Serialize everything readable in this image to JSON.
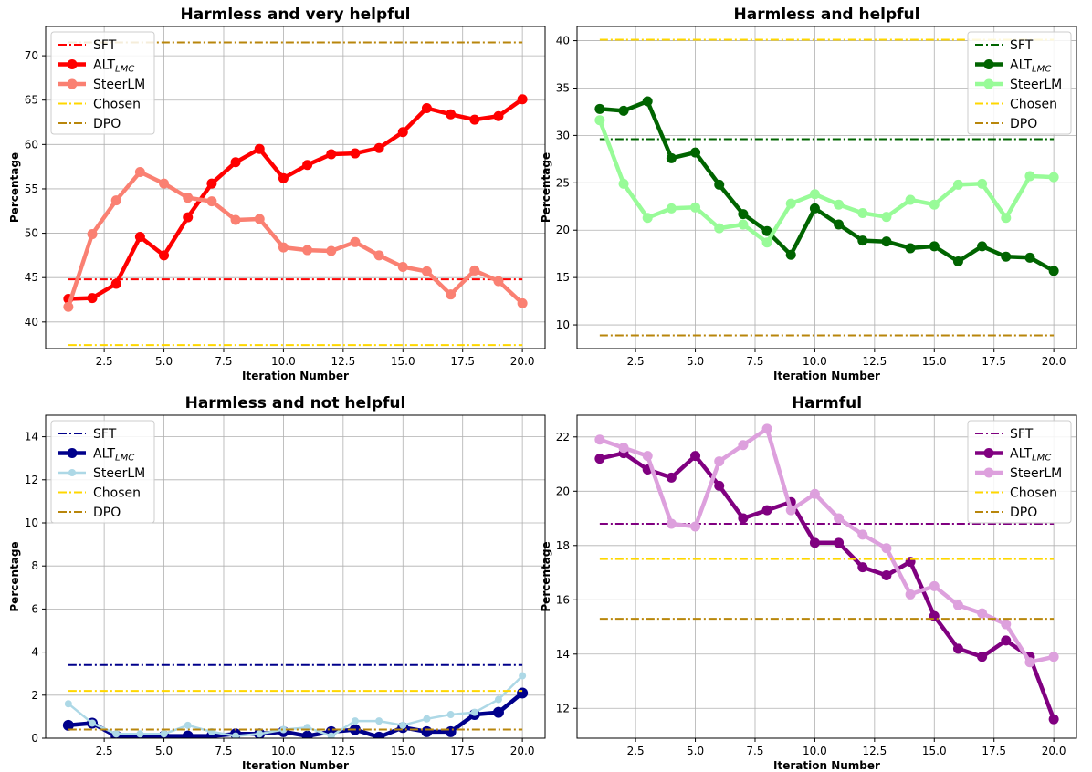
{
  "chart_data": [
    {
      "type": "line",
      "title": "Harmless and very helpful",
      "xlabel": "Iteration Number",
      "ylabel": "Percentage",
      "xlim": [
        0.05,
        20.95
      ],
      "ylim": [
        37.0,
        73.3
      ],
      "xticks": [
        2.5,
        5.0,
        7.5,
        10.0,
        12.5,
        15.0,
        17.5,
        20.0
      ],
      "xtick_labels": [
        "2.5",
        "5.0",
        "7.5",
        "10.0",
        "12.5",
        "15.0",
        "17.5",
        "20.0"
      ],
      "yticks": [
        40,
        45,
        50,
        55,
        60,
        65,
        70
      ],
      "ytick_labels": [
        "40",
        "45",
        "50",
        "55",
        "60",
        "65",
        "70"
      ],
      "grid": true,
      "legend_position": "top-left",
      "x": [
        1,
        2,
        3,
        4,
        5,
        6,
        7,
        8,
        9,
        10,
        11,
        12,
        13,
        14,
        15,
        16,
        17,
        18,
        19,
        20
      ],
      "series": [
        {
          "name": "SFT",
          "kind": "hline",
          "value": 44.8,
          "color": "#ff0000"
        },
        {
          "name": "ALT",
          "name_sub": "LMC",
          "kind": "line",
          "color": "#ff0000",
          "values": [
            42.6,
            42.7,
            44.3,
            49.6,
            47.5,
            51.8,
            55.6,
            58.0,
            59.5,
            56.2,
            57.7,
            58.9,
            59.0,
            59.6,
            61.4,
            64.1,
            63.4,
            62.8,
            63.2,
            65.1
          ]
        },
        {
          "name": "SteerLM",
          "kind": "line",
          "color": "#fa8072",
          "values": [
            41.7,
            49.9,
            53.7,
            56.9,
            55.6,
            54.0,
            53.6,
            51.5,
            51.6,
            48.4,
            48.1,
            48.0,
            49.0,
            47.5,
            46.2,
            45.7,
            43.1,
            45.8,
            44.6,
            42.1
          ]
        },
        {
          "name": "Chosen",
          "kind": "hline",
          "value": 37.4,
          "color": "#ffd700"
        },
        {
          "name": "DPO",
          "kind": "hline",
          "value": 71.5,
          "color": "#b8860b"
        }
      ]
    },
    {
      "type": "line",
      "title": "Harmless and helpful",
      "xlabel": "Iteration Number",
      "ylabel": "Percentage",
      "xlim": [
        0.05,
        20.95
      ],
      "ylim": [
        7.5,
        41.5
      ],
      "xticks": [
        2.5,
        5.0,
        7.5,
        10.0,
        12.5,
        15.0,
        17.5,
        20.0
      ],
      "xtick_labels": [
        "2.5",
        "5.0",
        "7.5",
        "10.0",
        "12.5",
        "15.0",
        "17.5",
        "20.0"
      ],
      "yticks": [
        10,
        15,
        20,
        25,
        30,
        35,
        40
      ],
      "ytick_labels": [
        "10",
        "15",
        "20",
        "25",
        "30",
        "35",
        "40"
      ],
      "grid": true,
      "legend_position": "top-right",
      "x": [
        1,
        2,
        3,
        4,
        5,
        6,
        7,
        8,
        9,
        10,
        11,
        12,
        13,
        14,
        15,
        16,
        17,
        18,
        19,
        20
      ],
      "series": [
        {
          "name": "SFT",
          "kind": "hline",
          "value": 29.6,
          "color": "#006400"
        },
        {
          "name": "ALT",
          "name_sub": "LMC",
          "kind": "line",
          "color": "#006400",
          "values": [
            32.8,
            32.6,
            33.6,
            27.6,
            28.2,
            24.8,
            21.7,
            19.9,
            17.4,
            22.3,
            20.6,
            18.9,
            18.8,
            18.1,
            18.3,
            16.7,
            18.3,
            17.2,
            17.1,
            15.7
          ]
        },
        {
          "name": "SteerLM",
          "kind": "line",
          "color": "#98fb98",
          "values": [
            31.6,
            24.9,
            21.3,
            22.3,
            22.4,
            20.2,
            20.6,
            18.7,
            22.8,
            23.8,
            22.7,
            21.8,
            21.4,
            23.2,
            22.7,
            24.8,
            24.9,
            21.3,
            25.7,
            25.6
          ]
        },
        {
          "name": "Chosen",
          "kind": "hline",
          "value": 40.1,
          "color": "#ffd700"
        },
        {
          "name": "DPO",
          "kind": "hline",
          "value": 8.9,
          "color": "#b8860b"
        }
      ]
    },
    {
      "type": "line",
      "title": "Harmless and not helpful",
      "xlabel": "Iteration Number",
      "ylabel": "Percentage",
      "xlim": [
        0.05,
        20.95
      ],
      "ylim": [
        0,
        15
      ],
      "xticks": [
        2.5,
        5.0,
        7.5,
        10.0,
        12.5,
        15.0,
        17.5,
        20.0
      ],
      "xtick_labels": [
        "2.5",
        "5.0",
        "7.5",
        "10.0",
        "12.5",
        "15.0",
        "17.5",
        "20.0"
      ],
      "yticks": [
        0,
        2,
        4,
        6,
        8,
        10,
        12,
        14
      ],
      "ytick_labels": [
        "0",
        "2",
        "4",
        "6",
        "8",
        "10",
        "12",
        "14"
      ],
      "grid": true,
      "legend_position": "top-left",
      "x": [
        1,
        2,
        3,
        4,
        5,
        6,
        7,
        8,
        9,
        10,
        11,
        12,
        13,
        14,
        15,
        16,
        17,
        18,
        19,
        20
      ],
      "series": [
        {
          "name": "SFT",
          "kind": "hline",
          "value": 3.4,
          "color": "#00008b"
        },
        {
          "name": "ALT",
          "name_sub": "LMC",
          "kind": "line",
          "color": "#00008b",
          "values": [
            0.6,
            0.7,
            0.1,
            0.05,
            0.1,
            0.1,
            0.1,
            0.2,
            0.2,
            0.3,
            0.1,
            0.3,
            0.4,
            0.05,
            0.5,
            0.3,
            0.3,
            1.1,
            1.2,
            2.1
          ]
        },
        {
          "name": "SteerLM",
          "kind": "line",
          "color": "#add8e6",
          "values": [
            1.6,
            0.7,
            0.2,
            0.2,
            0.2,
            0.6,
            0.3,
            0.1,
            0.2,
            0.4,
            0.5,
            0.1,
            0.8,
            0.8,
            0.6,
            0.9,
            1.1,
            1.2,
            1.8,
            2.9
          ]
        },
        {
          "name": "Chosen",
          "kind": "hline",
          "value": 2.2,
          "color": "#ffd700"
        },
        {
          "name": "DPO",
          "kind": "hline",
          "value": 0.4,
          "color": "#b8860b"
        }
      ]
    },
    {
      "type": "line",
      "title": "Harmful",
      "xlabel": "Iteration Number",
      "ylabel": "Percentage",
      "xlim": [
        0.05,
        20.95
      ],
      "ylim": [
        10.9,
        22.8
      ],
      "xticks": [
        2.5,
        5.0,
        7.5,
        10.0,
        12.5,
        15.0,
        17.5,
        20.0
      ],
      "xtick_labels": [
        "2.5",
        "5.0",
        "7.5",
        "10.0",
        "12.5",
        "15.0",
        "17.5",
        "20.0"
      ],
      "yticks": [
        12,
        14,
        16,
        18,
        20,
        22
      ],
      "ytick_labels": [
        "12",
        "14",
        "16",
        "18",
        "20",
        "22"
      ],
      "grid": true,
      "legend_position": "top-right",
      "x": [
        1,
        2,
        3,
        4,
        5,
        6,
        7,
        8,
        9,
        10,
        11,
        12,
        13,
        14,
        15,
        16,
        17,
        18,
        19,
        20
      ],
      "series": [
        {
          "name": "SFT",
          "kind": "hline",
          "value": 18.8,
          "color": "#800080"
        },
        {
          "name": "ALT",
          "name_sub": "LMC",
          "kind": "line",
          "color": "#800080",
          "values": [
            21.2,
            21.4,
            20.8,
            20.5,
            21.3,
            20.2,
            19.0,
            19.3,
            19.6,
            18.1,
            18.1,
            17.2,
            16.9,
            17.4,
            15.4,
            14.2,
            13.9,
            14.5,
            13.9,
            11.6
          ]
        },
        {
          "name": "SteerLM",
          "kind": "line",
          "color": "#dda0dd",
          "values": [
            21.9,
            21.6,
            21.3,
            18.8,
            18.7,
            21.1,
            21.7,
            22.3,
            19.3,
            19.9,
            19.0,
            18.4,
            17.9,
            16.2,
            16.5,
            15.8,
            15.5,
            15.1,
            13.7,
            13.9
          ]
        },
        {
          "name": "Chosen",
          "kind": "hline",
          "value": 17.5,
          "color": "#ffd700"
        },
        {
          "name": "DPO",
          "kind": "hline",
          "value": 15.3,
          "color": "#b8860b"
        }
      ]
    }
  ]
}
